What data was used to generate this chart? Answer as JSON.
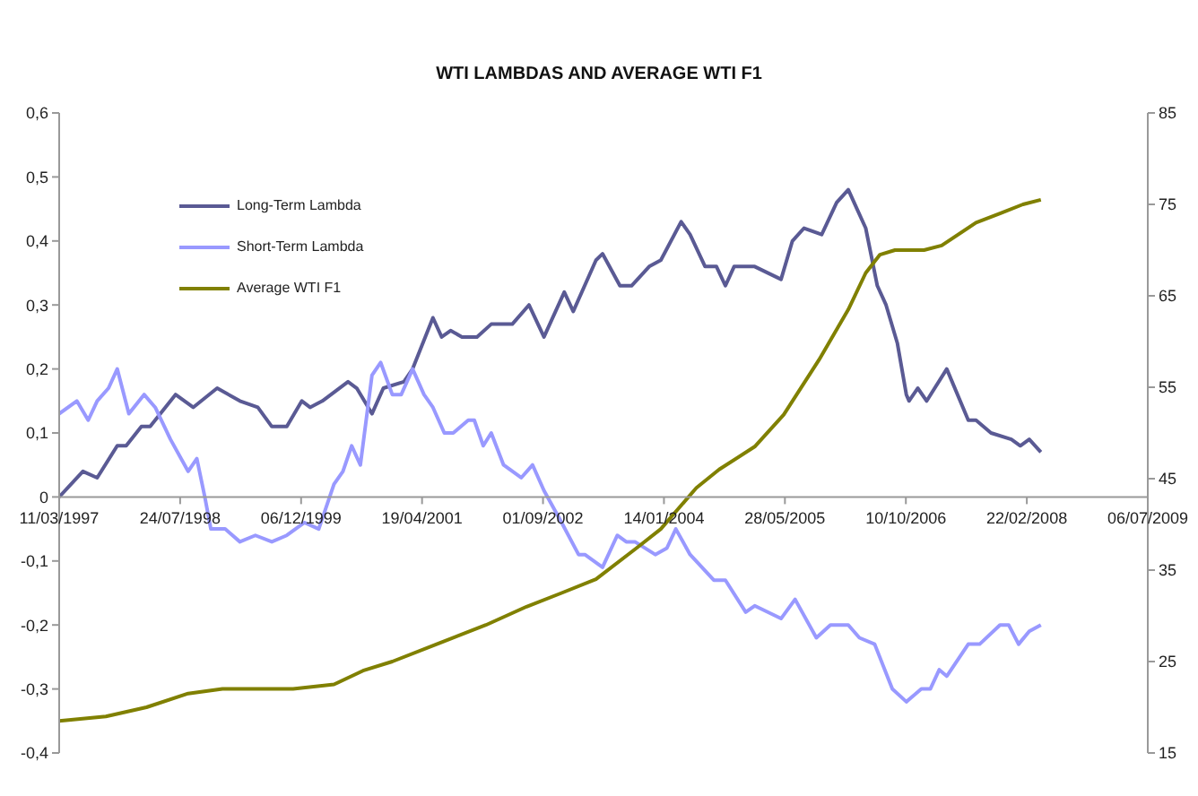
{
  "chart_data": {
    "type": "line",
    "title": "WTI LAMBDAS AND AVERAGE WTI F1",
    "xlim": [
      "1997-03-11",
      "2009-07-06"
    ],
    "xticks": [
      {
        "value": "1997-03-11",
        "label": "11/03/1997"
      },
      {
        "value": "1998-07-24",
        "label": "24/07/1998"
      },
      {
        "value": "1999-12-06",
        "label": "06/12/1999"
      },
      {
        "value": "2001-04-19",
        "label": "19/04/2001"
      },
      {
        "value": "2002-09-01",
        "label": "01/09/2002"
      },
      {
        "value": "2004-01-14",
        "label": "14/01/2004"
      },
      {
        "value": "2005-05-28",
        "label": "28/05/2005"
      },
      {
        "value": "2006-10-10",
        "label": "10/10/2006"
      },
      {
        "value": "2008-02-22",
        "label": "22/02/2008"
      },
      {
        "value": "2009-07-06",
        "label": "06/07/2009"
      }
    ],
    "ylim": [
      -0.4,
      0.6
    ],
    "yticks": [
      {
        "value": -0.4,
        "label": "-0,4"
      },
      {
        "value": -0.3,
        "label": "-0,3"
      },
      {
        "value": -0.2,
        "label": "-0,2"
      },
      {
        "value": -0.1,
        "label": "-0,1"
      },
      {
        "value": 0,
        "label": "0"
      },
      {
        "value": 0.1,
        "label": "0,1"
      },
      {
        "value": 0.2,
        "label": "0,2"
      },
      {
        "value": 0.3,
        "label": "0,3"
      },
      {
        "value": 0.4,
        "label": "0,4"
      },
      {
        "value": 0.5,
        "label": "0,5"
      },
      {
        "value": 0.6,
        "label": "0,6"
      }
    ],
    "y2lim": [
      15,
      85
    ],
    "y2ticks": [
      15,
      25,
      35,
      45,
      55,
      65,
      75,
      85
    ],
    "grid": false,
    "legend": "top left",
    "marker": "none",
    "line_style": "solid",
    "series": [
      {
        "name": "Long-Term Lambda",
        "color": "#5a5a94",
        "x": [
          "1997-03-11",
          "1997-06-17",
          "1997-08-15",
          "1997-11-06",
          "1997-12-13",
          "1998-02-14",
          "1998-03-22",
          "1998-07-05",
          "1998-09-16",
          "1998-12-24",
          "1999-03-28",
          "1999-06-10",
          "1999-08-07",
          "1999-10-08",
          "1999-12-09",
          "2000-01-12",
          "2000-03-03",
          "2000-06-17",
          "2000-07-23",
          "2000-09-24",
          "2000-11-10",
          "2001-02-03",
          "2001-03-11",
          "2001-06-03",
          "2001-07-09",
          "2001-08-15",
          "2001-10-01",
          "2001-12-02",
          "2002-01-30",
          "2002-03-22",
          "2002-04-27",
          "2002-07-05",
          "2002-09-05",
          "2002-11-28",
          "2003-01-04",
          "2003-04-08",
          "2003-05-05",
          "2003-07-16",
          "2003-09-02",
          "2003-11-14",
          "2004-01-01",
          "2004-03-25",
          "2004-05-01",
          "2004-07-02",
          "2004-08-18",
          "2004-09-24",
          "2004-10-30",
          "2005-01-23",
          "2005-05-12",
          "2005-06-28",
          "2005-08-15",
          "2005-10-27",
          "2005-12-28",
          "2006-02-14",
          "2006-03-22",
          "2006-04-27",
          "2006-06-14",
          "2006-07-20",
          "2006-09-05",
          "2006-10-12",
          "2006-10-23",
          "2006-11-28",
          "2007-01-04",
          "2007-03-28",
          "2007-06-25",
          "2007-07-27",
          "2007-09-27",
          "2007-12-20",
          "2008-01-26",
          "2008-03-03",
          "2008-04-20"
        ],
        "values": [
          0,
          0.04,
          0.03,
          0.08,
          0.08,
          0.11,
          0.11,
          0.16,
          0.14,
          0.17,
          0.15,
          0.14,
          0.11,
          0.11,
          0.15,
          0.14,
          0.15,
          0.18,
          0.17,
          0.13,
          0.17,
          0.18,
          0.2,
          0.28,
          0.25,
          0.26,
          0.25,
          0.25,
          0.27,
          0.27,
          0.27,
          0.3,
          0.25,
          0.32,
          0.29,
          0.37,
          0.38,
          0.33,
          0.33,
          0.36,
          0.37,
          0.43,
          0.41,
          0.36,
          0.36,
          0.33,
          0.36,
          0.36,
          0.34,
          0.4,
          0.42,
          0.41,
          0.46,
          0.48,
          0.45,
          0.42,
          0.33,
          0.3,
          0.24,
          0.16,
          0.15,
          0.17,
          0.15,
          0.2,
          0.12,
          0.12,
          0.1,
          0.09,
          0.08,
          0.09,
          0.07
        ]
      },
      {
        "name": "Short-Term Lambda",
        "color": "#9999ff",
        "x": [
          "1997-03-11",
          "1997-05-23",
          "1997-07-09",
          "1997-08-15",
          "1997-10-01",
          "1997-11-06",
          "1997-12-24",
          "1998-02-25",
          "1998-04-12",
          "1998-06-14",
          "1998-08-26",
          "1998-10-01",
          "1998-11-03",
          "1998-11-28",
          "1999-01-26",
          "1999-03-28",
          "1999-05-31",
          "1999-08-07",
          "1999-10-08",
          "1999-12-20",
          "2000-02-17",
          "2000-04-20",
          "2000-05-27",
          "2000-07-02",
          "2000-08-07",
          "2000-09-24",
          "2000-10-30",
          "2000-12-17",
          "2001-01-23",
          "2001-03-11",
          "2001-04-27",
          "2001-06-03",
          "2001-07-20",
          "2001-08-26",
          "2001-10-27",
          "2001-11-21",
          "2001-12-28",
          "2002-01-30",
          "2002-03-22",
          "2002-06-03",
          "2002-07-20",
          "2002-09-05",
          "2002-11-17",
          "2003-01-26",
          "2003-02-21",
          "2003-05-05",
          "2003-07-05",
          "2003-08-11",
          "2003-09-16",
          "2003-12-09",
          "2004-01-26",
          "2004-03-03",
          "2004-05-01",
          "2004-08-07",
          "2004-09-24",
          "2004-12-17",
          "2005-01-23",
          "2005-05-12",
          "2005-07-09",
          "2005-10-05",
          "2005-12-02",
          "2006-02-14",
          "2006-04-01",
          "2006-06-03",
          "2006-08-15",
          "2006-10-12",
          "2006-12-13",
          "2007-01-19",
          "2007-02-25",
          "2007-03-28",
          "2007-06-25",
          "2007-08-11",
          "2007-11-03",
          "2007-12-09",
          "2008-01-19",
          "2008-03-03",
          "2008-04-20"
        ],
        "values": [
          0.13,
          0.15,
          0.12,
          0.15,
          0.17,
          0.2,
          0.13,
          0.16,
          0.14,
          0.09,
          0.04,
          0.06,
          0,
          -0.05,
          -0.05,
          -0.07,
          -0.06,
          -0.07,
          -0.06,
          -0.04,
          -0.05,
          0.02,
          0.04,
          0.08,
          0.05,
          0.19,
          0.21,
          0.16,
          0.16,
          0.2,
          0.16,
          0.14,
          0.1,
          0.1,
          0.12,
          0.12,
          0.08,
          0.1,
          0.05,
          0.03,
          0.05,
          0.01,
          -0.04,
          -0.09,
          -0.09,
          -0.11,
          -0.06,
          -0.07,
          -0.07,
          -0.09,
          -0.08,
          -0.05,
          -0.09,
          -0.13,
          -0.13,
          -0.18,
          -0.17,
          -0.19,
          -0.16,
          -0.22,
          -0.2,
          -0.2,
          -0.22,
          -0.23,
          -0.3,
          -0.32,
          -0.3,
          -0.3,
          -0.27,
          -0.28,
          -0.23,
          -0.23,
          -0.2,
          -0.2,
          -0.23,
          -0.21,
          -0.2
        ]
      },
      {
        "name": "Average WTI F1",
        "color": "#808000",
        "axis": "y2",
        "x": [
          "1997-03-11",
          "1997-09-20",
          "1998-03-07",
          "1998-08-26",
          "1999-01-15",
          "1999-04-23",
          "1999-11-03",
          "2000-04-20",
          "2000-08-18",
          "2000-12-17",
          "2001-06-28",
          "2002-01-08",
          "2002-06-25",
          "2002-11-17",
          "2003-04-08",
          "2003-09-27",
          "2004-01-01",
          "2004-05-27",
          "2004-08-29",
          "2005-01-23",
          "2005-05-23",
          "2005-10-16",
          "2006-02-14",
          "2006-04-27",
          "2006-06-25",
          "2006-08-26",
          "2006-12-24",
          "2007-03-07",
          "2007-07-27",
          "2007-11-03",
          "2008-02-06",
          "2008-04-20"
        ],
        "values": [
          18.5,
          19,
          20,
          21.5,
          22,
          22,
          22,
          22.5,
          24,
          25,
          27,
          29,
          31,
          32.5,
          34,
          37.5,
          39.5,
          44,
          46,
          48.5,
          52,
          58,
          63.5,
          67.5,
          69.5,
          70,
          70,
          70.5,
          73,
          74,
          75,
          75.5
        ]
      }
    ]
  }
}
